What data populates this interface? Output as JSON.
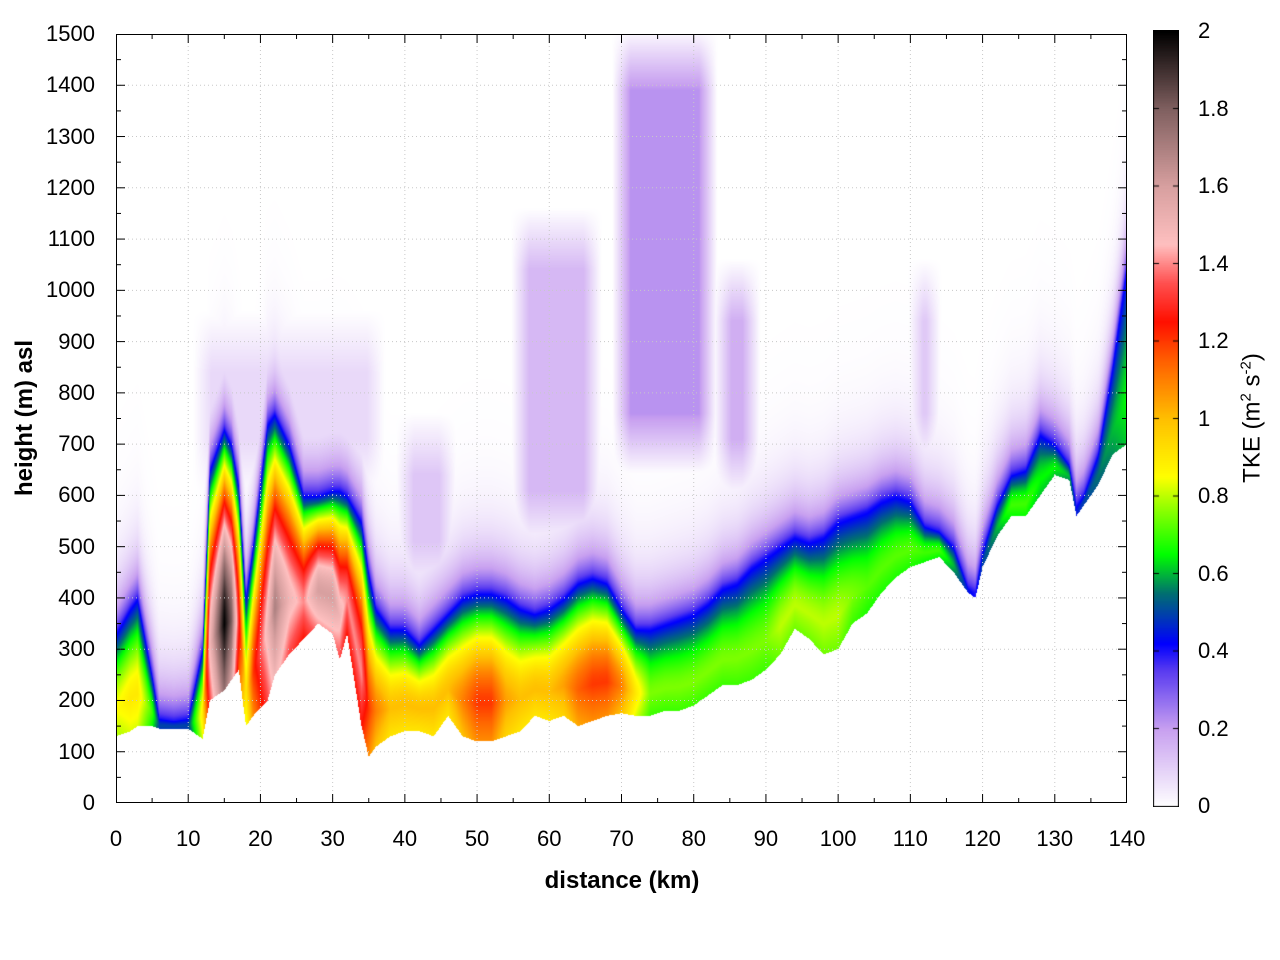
{
  "chart_data": {
    "type": "heatmap",
    "title": "",
    "xlabel": "distance (km)",
    "ylabel": "height (m) asl",
    "xlim": [
      0,
      140
    ],
    "ylim": [
      0,
      1500
    ],
    "x_ticks": [
      "0",
      "10",
      "20",
      "30",
      "40",
      "50",
      "60",
      "70",
      "80",
      "90",
      "100",
      "110",
      "120",
      "130",
      "140"
    ],
    "y_ticks": [
      "0",
      "100",
      "200",
      "300",
      "400",
      "500",
      "600",
      "700",
      "800",
      "900",
      "1000",
      "1100",
      "1200",
      "1300",
      "1400",
      "1500"
    ],
    "grid": true,
    "colorbar": {
      "label_main": "TKE (m",
      "label_sup1": "2",
      "label_mid": " s",
      "label_sup2": "-2",
      "label_end": ")",
      "range": [
        0,
        2
      ],
      "ticks": [
        "0",
        "0.2",
        "0.4",
        "0.6",
        "0.8",
        "1",
        "1.2",
        "1.4",
        "1.6",
        "1.8",
        "2"
      ],
      "colormap": [
        [
          0.0,
          "#ffffff"
        ],
        [
          0.2,
          "#c8a0f0"
        ],
        [
          0.35,
          "#5a3cf0"
        ],
        [
          0.42,
          "#0000ff"
        ],
        [
          0.55,
          "#007070"
        ],
        [
          0.65,
          "#00ff00"
        ],
        [
          0.78,
          "#a0ff00"
        ],
        [
          0.85,
          "#ffff00"
        ],
        [
          1.0,
          "#ffc000"
        ],
        [
          1.15,
          "#ff6000"
        ],
        [
          1.25,
          "#ff1000"
        ],
        [
          1.35,
          "#ff5050"
        ],
        [
          1.45,
          "#ffc0c0"
        ],
        [
          1.6,
          "#d8a0a0"
        ],
        [
          1.8,
          "#806060"
        ],
        [
          2.0,
          "#000000"
        ]
      ]
    },
    "boundary_layer": {
      "x_km": [
        0,
        2,
        3,
        5,
        6,
        8,
        10,
        12,
        13,
        15,
        16,
        17,
        18,
        19,
        21,
        22,
        24,
        26,
        28,
        30,
        31,
        32,
        34,
        35,
        36,
        38,
        40,
        42,
        44,
        46,
        48,
        50,
        52,
        54,
        56,
        58,
        60,
        62,
        64,
        66,
        68,
        70,
        72,
        74,
        76,
        78,
        80,
        82,
        84,
        86,
        88,
        90,
        92,
        94,
        96,
        98,
        100,
        102,
        104,
        106,
        108,
        110,
        112,
        114,
        116,
        118,
        119,
        120,
        122,
        124,
        126,
        128,
        130,
        132,
        133,
        134,
        136,
        138,
        140
      ],
      "ground_m": [
        130,
        140,
        150,
        150,
        145,
        145,
        145,
        125,
        200,
        220,
        240,
        260,
        150,
        170,
        200,
        250,
        290,
        320,
        350,
        330,
        280,
        330,
        150,
        90,
        110,
        130,
        140,
        140,
        130,
        170,
        130,
        120,
        120,
        130,
        140,
        170,
        160,
        170,
        150,
        160,
        170,
        175,
        170,
        170,
        180,
        180,
        190,
        210,
        230,
        230,
        240,
        260,
        290,
        340,
        320,
        290,
        300,
        350,
        370,
        410,
        440,
        460,
        470,
        480,
        450,
        410,
        400,
        460,
        520,
        560,
        560,
        600,
        640,
        630,
        560,
        580,
        620,
        680,
        700
      ],
      "layer_top_m": [
        330,
        380,
        400,
        250,
        165,
        160,
        165,
        300,
        650,
        730,
        700,
        620,
        400,
        500,
        740,
        760,
        700,
        600,
        600,
        610,
        610,
        600,
        550,
        450,
        380,
        340,
        340,
        310,
        340,
        370,
        400,
        410,
        410,
        400,
        380,
        370,
        380,
        400,
        430,
        440,
        430,
        380,
        340,
        340,
        350,
        360,
        370,
        390,
        420,
        430,
        460,
        480,
        500,
        520,
        510,
        520,
        550,
        560,
        570,
        590,
        600,
        590,
        540,
        530,
        500,
        420,
        410,
        490,
        580,
        640,
        650,
        720,
        700,
        660,
        580,
        600,
        680,
        850,
        1050
      ],
      "tke_max": [
        0.85,
        0.9,
        0.9,
        0.7,
        0.5,
        0.5,
        0.5,
        0.9,
        1.5,
        2.0,
        1.8,
        1.3,
        0.9,
        1.2,
        1.5,
        1.7,
        1.5,
        1.4,
        1.6,
        1.6,
        1.5,
        1.4,
        1.4,
        1.2,
        1.1,
        1.0,
        1.0,
        1.0,
        1.0,
        1.0,
        1.1,
        1.2,
        1.2,
        1.05,
        1.0,
        1.0,
        1.0,
        1.05,
        1.15,
        1.2,
        1.2,
        1.1,
        0.9,
        0.75,
        0.75,
        0.75,
        0.75,
        0.75,
        0.75,
        0.75,
        0.75,
        0.75,
        0.8,
        0.8,
        0.8,
        0.8,
        0.8,
        0.75,
        0.72,
        0.72,
        0.72,
        0.72,
        0.7,
        0.7,
        0.6,
        0.45,
        0.4,
        0.5,
        0.6,
        0.7,
        0.7,
        0.65,
        0.65,
        0.6,
        0.45,
        0.5,
        0.55,
        0.6,
        0.65
      ]
    },
    "elevated_turbulence": [
      {
        "x_km": [
          70,
          82
        ],
        "z_m": [
          700,
          1450
        ],
        "tke": 0.22
      },
      {
        "x_km": [
          56,
          66
        ],
        "z_m": [
          550,
          1100
        ],
        "tke": 0.15
      },
      {
        "x_km": [
          84,
          88
        ],
        "z_m": [
          650,
          1000
        ],
        "tke": 0.17
      },
      {
        "x_km": [
          111,
          113
        ],
        "z_m": [
          700,
          1000
        ],
        "tke": 0.14
      },
      {
        "x_km": [
          40,
          46
        ],
        "z_m": [
          450,
          700
        ],
        "tke": 0.12
      },
      {
        "x_km": [
          12,
          36
        ],
        "z_m": [
          650,
          900
        ],
        "tke": 0.08
      }
    ]
  }
}
